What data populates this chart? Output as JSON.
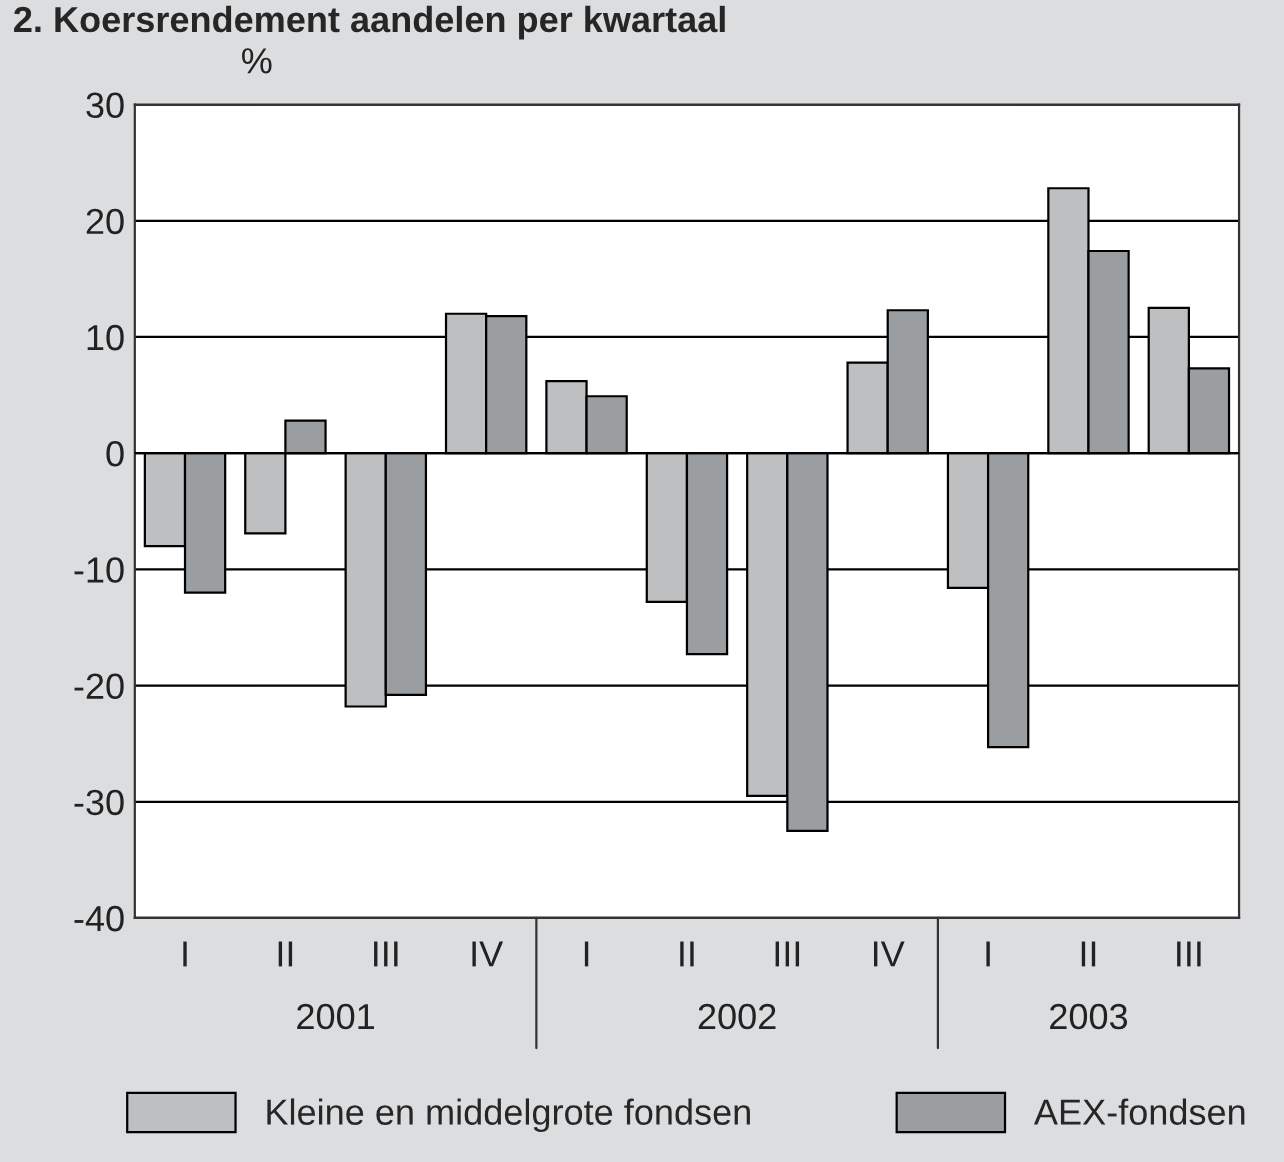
{
  "chart_data": {
    "type": "bar",
    "title": "2. Koersrendement aandelen per kwartaal",
    "ylabel": "%",
    "categories": [
      "I",
      "II",
      "III",
      "IV",
      "I",
      "II",
      "III",
      "IV",
      "I",
      "II",
      "III"
    ],
    "series": [
      {
        "name": "Kleine en middelgrote fondsen",
        "color": "#bdbfc1",
        "values": [
          -8.0,
          -6.9,
          -21.8,
          12.0,
          6.2,
          -12.8,
          -29.5,
          7.8,
          -11.6,
          22.8,
          12.5
        ]
      },
      {
        "name": "AEX-fondsen",
        "color": "#9a9ea1",
        "values": [
          -12.0,
          2.8,
          -20.8,
          11.8,
          4.9,
          -17.3,
          -32.5,
          12.3,
          -25.3,
          17.4,
          7.3
        ]
      }
    ],
    "annotations": [
      "2001",
      "2002",
      "2003"
    ],
    "ylim": [
      -40,
      30
    ],
    "yticks": [
      -40,
      -30,
      -20,
      -10,
      0,
      10,
      20,
      30
    ],
    "grid": "y",
    "legend": "bottom"
  }
}
